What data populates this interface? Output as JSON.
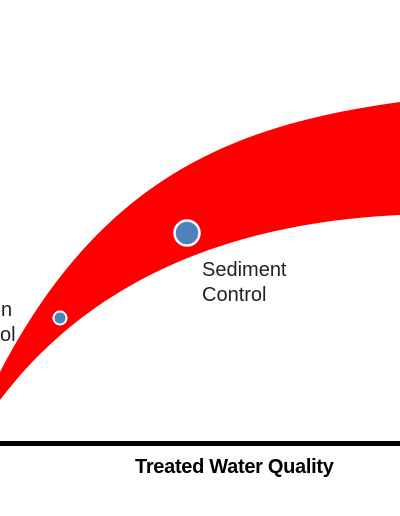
{
  "diagram": {
    "colors": {
      "band": "#ff0000",
      "point_fill": "#4f81bd",
      "point_stroke": "#ffffff",
      "axis": "#000000",
      "text": "#222222",
      "background": "#ffffff"
    },
    "x_axis": {
      "label": "Treated Water Quality"
    },
    "points": [
      {
        "name": "Erosion Control",
        "label_line1": "n",
        "label_line2": "ol"
      },
      {
        "name": "Sediment Control",
        "label_line1": "Sediment",
        "label_line2": "Control"
      }
    ]
  }
}
